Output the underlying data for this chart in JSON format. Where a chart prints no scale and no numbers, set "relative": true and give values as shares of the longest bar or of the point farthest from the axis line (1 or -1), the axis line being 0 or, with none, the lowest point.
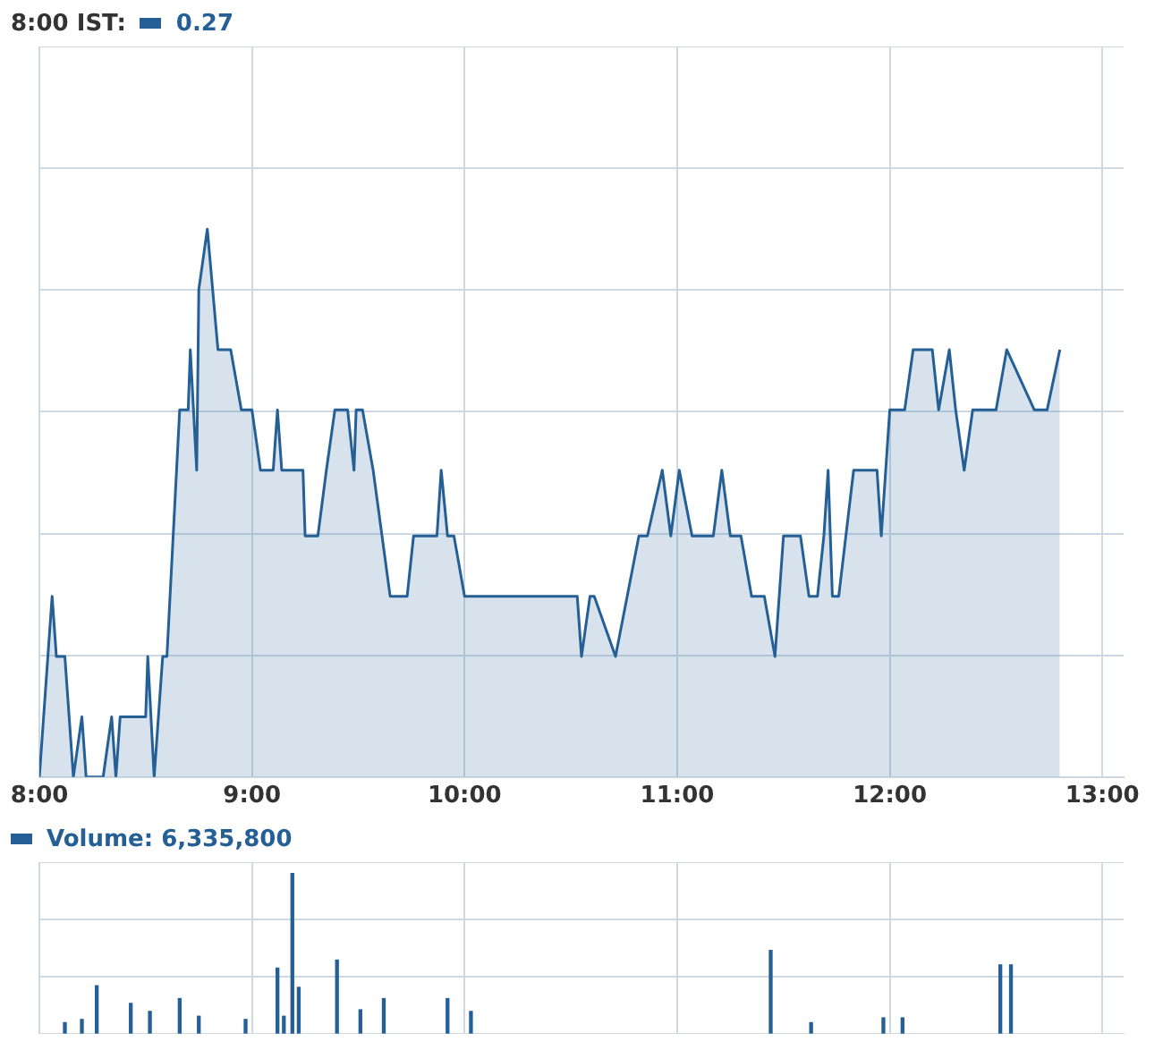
{
  "chart_data": [
    {
      "type": "area",
      "relative": true,
      "annotations": [
        "8:00 IST:",
        "0.27"
      ],
      "xlim": [
        8,
        13.1
      ],
      "xticks": [
        {
          "value": 8,
          "label": "8:00"
        },
        {
          "value": 9,
          "label": "9:00"
        },
        {
          "value": 10,
          "label": "10:00"
        },
        {
          "value": 11,
          "label": "11:00"
        },
        {
          "value": 12,
          "label": "12:00"
        },
        {
          "value": 13,
          "label": "13:00"
        }
      ],
      "grid": true,
      "legend": false,
      "x": [
        8.0,
        8.06,
        8.08,
        8.12,
        8.16,
        8.2,
        8.22,
        8.3,
        8.34,
        8.36,
        8.38,
        8.5,
        8.51,
        8.54,
        8.58,
        8.6,
        8.66,
        8.7,
        8.71,
        8.74,
        8.75,
        8.79,
        8.84,
        8.9,
        8.95,
        9.0,
        9.04,
        9.1,
        9.12,
        9.14,
        9.24,
        9.25,
        9.31,
        9.35,
        9.39,
        9.45,
        9.48,
        9.49,
        9.52,
        9.57,
        9.65,
        9.73,
        9.76,
        9.87,
        9.89,
        9.92,
        9.95,
        10.0,
        10.53,
        10.55,
        10.59,
        10.61,
        10.71,
        10.82,
        10.86,
        10.93,
        10.97,
        11.01,
        11.07,
        11.17,
        11.21,
        11.25,
        11.3,
        11.35,
        11.41,
        11.46,
        11.5,
        11.58,
        11.62,
        11.66,
        11.69,
        11.71,
        11.73,
        11.76,
        11.83,
        11.94,
        11.96,
        12.0,
        12.07,
        12.11,
        12.2,
        12.23,
        12.28,
        12.31,
        12.35,
        12.39,
        12.42,
        12.47,
        12.5,
        12.55,
        12.68,
        12.74,
        12.8
      ],
      "series": [
        {
          "color": "#245f96",
          "values": [
            0,
            0.33,
            0.22,
            0.22,
            0,
            0.11,
            0,
            0,
            0.11,
            0,
            0.11,
            0.11,
            0.22,
            0,
            0.22,
            0.22,
            0.67,
            0.67,
            0.78,
            0.56,
            0.89,
            1,
            0.78,
            0.78,
            0.67,
            0.67,
            0.56,
            0.56,
            0.67,
            0.56,
            0.56,
            0.44,
            0.44,
            0.56,
            0.67,
            0.67,
            0.56,
            0.67,
            0.67,
            0.56,
            0.33,
            0.33,
            0.44,
            0.44,
            0.56,
            0.44,
            0.44,
            0.33,
            0.33,
            0.22,
            0.33,
            0.33,
            0.22,
            0.44,
            0.44,
            0.56,
            0.44,
            0.56,
            0.44,
            0.44,
            0.56,
            0.44,
            0.44,
            0.33,
            0.33,
            0.22,
            0.44,
            0.44,
            0.33,
            0.33,
            0.44,
            0.56,
            0.33,
            0.33,
            0.56,
            0.56,
            0.44,
            0.67,
            0.67,
            0.78,
            0.78,
            0.67,
            0.78,
            0.67,
            0.56,
            0.67,
            0.67,
            0.67,
            0.67,
            0.78,
            0.67,
            0.67,
            0.78
          ]
        }
      ]
    },
    {
      "type": "bar",
      "relative": true,
      "annotations": [
        "Volume: 6,335,800"
      ],
      "xlim": [
        8,
        13.1
      ],
      "xticks": [
        {
          "value": 8,
          "label": null
        },
        {
          "value": 9,
          "label": null
        },
        {
          "value": 10,
          "label": null
        },
        {
          "value": 11,
          "label": null
        },
        {
          "value": 12,
          "label": null
        },
        {
          "value": 13,
          "label": null
        }
      ],
      "tick_labels": false,
      "grid": true,
      "legend": false,
      "x": [
        8.12,
        8.2,
        8.27,
        8.43,
        8.52,
        8.66,
        8.75,
        8.97,
        9.12,
        9.15,
        9.19,
        9.22,
        9.4,
        9.51,
        9.62,
        9.92,
        10.03,
        11.44,
        11.63,
        11.97,
        12.06,
        12.52,
        12.57
      ],
      "series": [
        {
          "color": "#245f96",
          "values": [
            0.07,
            0.09,
            0.3,
            0.19,
            0.14,
            0.22,
            0.11,
            0.09,
            0.41,
            0.11,
            1,
            0.29,
            0.46,
            0.15,
            0.22,
            0.22,
            0.14,
            0.52,
            0.07,
            0.1,
            0.1,
            0.43,
            0.43
          ]
        }
      ]
    }
  ]
}
